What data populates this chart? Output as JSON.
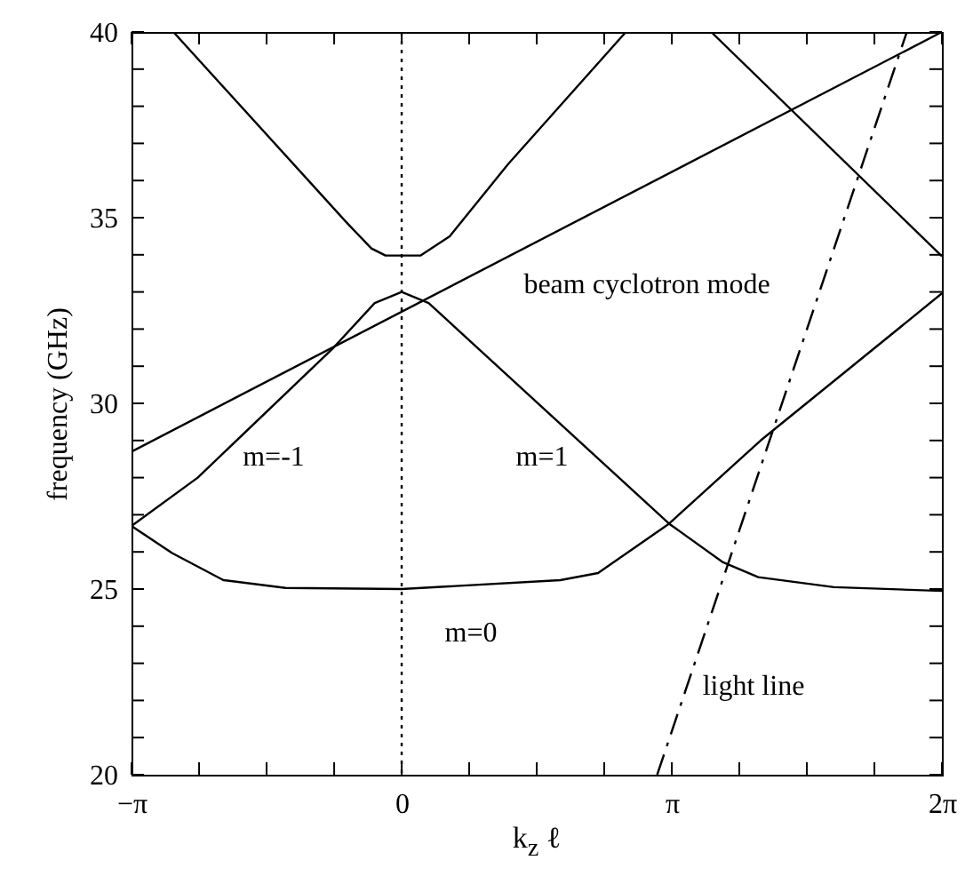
{
  "chart_data": {
    "type": "line",
    "xlabel": "k$_{z}$ ℓ",
    "ylabel": "frequency (GHz)",
    "xlim": [
      -3.142,
      6.283
    ],
    "xticks": [
      {
        "value": -3.142,
        "label": "−π"
      },
      {
        "value": -2.356,
        "label": null
      },
      {
        "value": -1.571,
        "label": null
      },
      {
        "value": -0.785,
        "label": null
      },
      0,
      {
        "value": 0.785,
        "label": null
      },
      {
        "value": 1.571,
        "label": null
      },
      {
        "value": 2.356,
        "label": null
      },
      {
        "value": 3.142,
        "label": "π"
      },
      {
        "value": 3.927,
        "label": null
      },
      {
        "value": 4.712,
        "label": null
      },
      {
        "value": 5.498,
        "label": null
      },
      {
        "value": 6.283,
        "label": "2π"
      }
    ],
    "ylim": [
      20,
      40
    ],
    "yticks": [
      20,
      {
        "value": 21,
        "label": null
      },
      {
        "value": 22,
        "label": null
      },
      {
        "value": 23,
        "label": null
      },
      {
        "value": 24,
        "label": null
      },
      25,
      {
        "value": 26,
        "label": null
      },
      {
        "value": 27,
        "label": null
      },
      {
        "value": 28,
        "label": null
      },
      {
        "value": 29,
        "label": null
      },
      30,
      {
        "value": 31,
        "label": null
      },
      {
        "value": 32,
        "label": null
      },
      {
        "value": 33,
        "label": null
      },
      {
        "value": 34,
        "label": null
      },
      35,
      {
        "value": 36,
        "label": null
      },
      {
        "value": 37,
        "label": null
      },
      {
        "value": 38,
        "label": null
      },
      {
        "value": 39,
        "label": null
      },
      40
    ],
    "series": [
      {
        "color": "#000000",
        "x": [
          -2.655,
          -0.653,
          -0.352,
          -0.188,
          0.217,
          0.559,
          1.238,
          2.608
        ],
        "values": [
          40,
          34.9,
          34.17,
          33.98,
          33.98,
          34.5,
          36.44,
          40
        ]
      },
      {
        "color": "#000000",
        "x": [
          -3.142,
          -2.372,
          -0.792,
          -0.314,
          0,
          0.314,
          3.11,
          3.738,
          4.147,
          5.027,
          6.283
        ],
        "values": [
          26.7,
          28.0,
          31.5,
          32.7,
          33.0,
          32.7,
          26.76,
          25.72,
          25.32,
          25.05,
          24.95
        ]
      },
      {
        "color": "#000000",
        "x": [
          -3.142,
          -2.67,
          -2.073,
          -1.351,
          0,
          1.844,
          2.284,
          3.11,
          4.175,
          6.283
        ],
        "values": [
          26.7,
          25.97,
          25.24,
          25.03,
          25.0,
          25.24,
          25.43,
          26.76,
          29.0,
          32.96
        ]
      },
      {
        "color": "#000000",
        "x": [
          -3.142,
          6.283
        ],
        "values": [
          28.7,
          40
        ]
      },
      {
        "color": "#000000",
        "x": [
          3.6,
          6.283
        ],
        "values": [
          40,
          33.96
        ]
      },
      {
        "color": "#000000",
        "line_style": "dashed",
        "x": [
          2.972,
          5.875
        ],
        "values": [
          20,
          40
        ]
      }
    ],
    "ref_lines": [
      {
        "axis": "x",
        "value": 0,
        "color": "#000000",
        "line_style": "dotted"
      }
    ],
    "annotations": [
      "beam cyclotron mode",
      "m=-1",
      "m=1",
      "m=0",
      "light line"
    ]
  }
}
